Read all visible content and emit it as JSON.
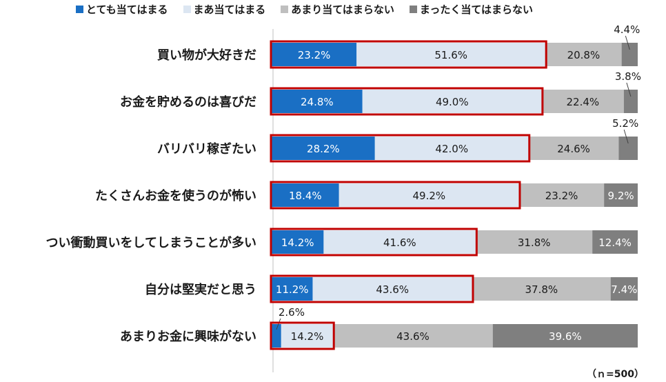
{
  "chart_data": {
    "type": "bar",
    "orientation": "horizontal-stacked-100",
    "legend_position": "top",
    "categories": [
      "買い物が大好きだ",
      "お金を貯めるのは喜びだ",
      "バリバリ稼ぎたい",
      "たくさんお金を使うのが怖い",
      "つい衝動買いをしてしまうことが多い",
      "自分は堅実だと思う",
      "あまりお金に興味がない"
    ],
    "series": [
      {
        "name": "とても当てはまる",
        "color": "#1a6fc4",
        "label_color": "#ffffff",
        "values": [
          23.2,
          24.8,
          28.2,
          18.4,
          14.2,
          11.2,
          2.6
        ],
        "labels": [
          "23.2%",
          "24.8%",
          "28.2%",
          "18.4%",
          "14.2%",
          "11.2%",
          "2.6%"
        ]
      },
      {
        "name": "まあ当てはまる",
        "color": "#dce6f2",
        "label_color": "#1a1a1a",
        "values": [
          51.6,
          49.0,
          42.0,
          49.2,
          41.6,
          43.6,
          14.2
        ],
        "labels": [
          "51.6%",
          "49.0%",
          "42.0%",
          "49.2%",
          "41.6%",
          "43.6%",
          "14.2%"
        ]
      },
      {
        "name": "あまり当てはまらない",
        "color": "#bfbfbf",
        "label_color": "#1a1a1a",
        "values": [
          20.8,
          22.4,
          24.6,
          23.2,
          31.8,
          37.8,
          43.6
        ],
        "labels": [
          "20.8%",
          "22.4%",
          "24.6%",
          "23.2%",
          "31.8%",
          "37.8%",
          "43.6%"
        ]
      },
      {
        "name": "まったく当てはまらない",
        "color": "#7f7f7f",
        "label_color": "#ffffff",
        "values": [
          4.4,
          3.8,
          5.2,
          9.2,
          12.4,
          7.4,
          39.6
        ],
        "labels": [
          "4.4%",
          "3.8%",
          "5.2%",
          "9.2%",
          "12.4%",
          "7.4%",
          "39.6%"
        ]
      }
    ],
    "highlight_color": "#c00000",
    "note": "（ｎ=500）"
  }
}
